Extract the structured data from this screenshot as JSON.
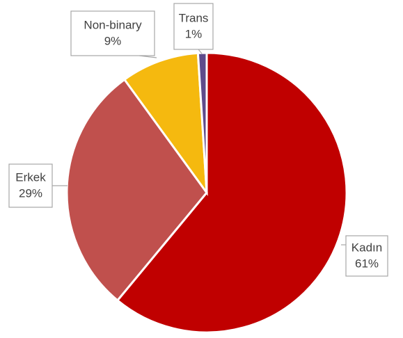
{
  "chart_data": {
    "type": "pie",
    "categories": [
      "Kadın",
      "Erkek",
      "Non-binary",
      "Trans"
    ],
    "values": [
      61,
      29,
      9,
      1
    ],
    "value_labels": [
      "61%",
      "29%",
      "9%",
      "1%"
    ],
    "colors": [
      "#c00000",
      "#c0504d",
      "#f5b90f",
      "#5f4b8b"
    ]
  }
}
